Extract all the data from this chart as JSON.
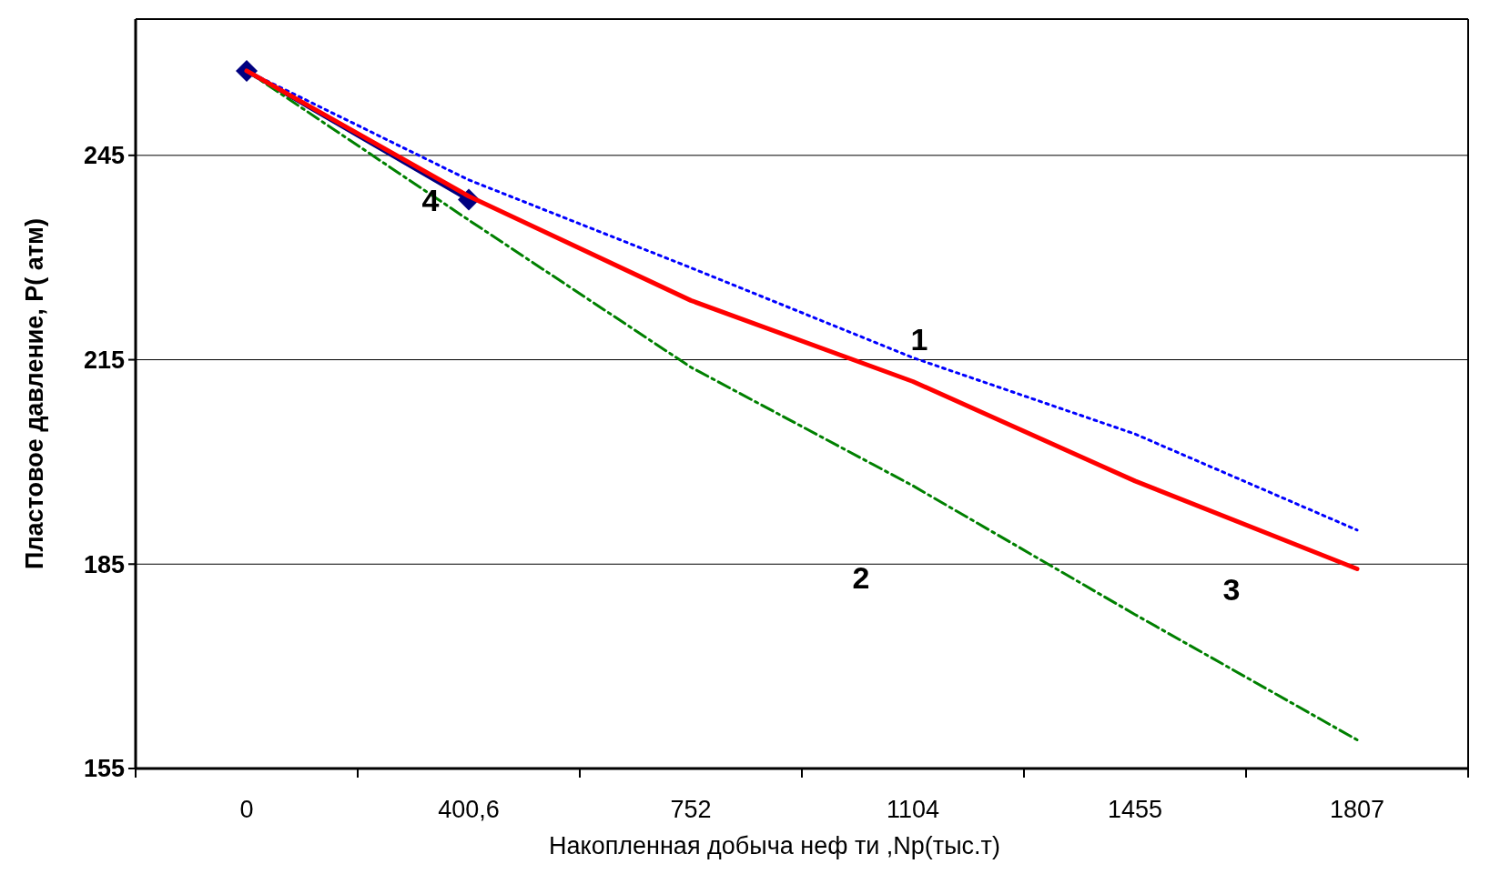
{
  "chart_data": {
    "type": "line",
    "xlabel": "Накопленная добыча неф ти ,Np(тыс.т)",
    "ylabel": "Пластовое давление, P( атм)",
    "categories": [
      "0",
      "400,6",
      "752",
      "1104",
      "1455",
      "1807"
    ],
    "series": [
      {
        "color": "#000080",
        "line_style": "solid",
        "marker": "diamond",
        "values": [
          257.4,
          238.5,
          null,
          null,
          null,
          null
        ]
      },
      {
        "color": "#0000ff",
        "line_style": "dotted",
        "marker": "none",
        "values": [
          257.4,
          241.4,
          228.5,
          215.3,
          204.1,
          190
        ]
      },
      {
        "color": "#008000",
        "line_style": "dashed",
        "marker": "none",
        "values": [
          257.4,
          235.5,
          213.9,
          196.5,
          177.6,
          159.2
        ]
      },
      {
        "color": "#ff0000",
        "line_style": "solid",
        "marker": "none",
        "values": [
          257.4,
          239,
          223.7,
          211.8,
          197.2,
          184.3
        ]
      }
    ],
    "annotations": [
      "1",
      "2",
      "3",
      "4"
    ],
    "ylim": [
      155,
      265
    ],
    "yticks": [
      155,
      185,
      215,
      245
    ],
    "grid": "y"
  }
}
